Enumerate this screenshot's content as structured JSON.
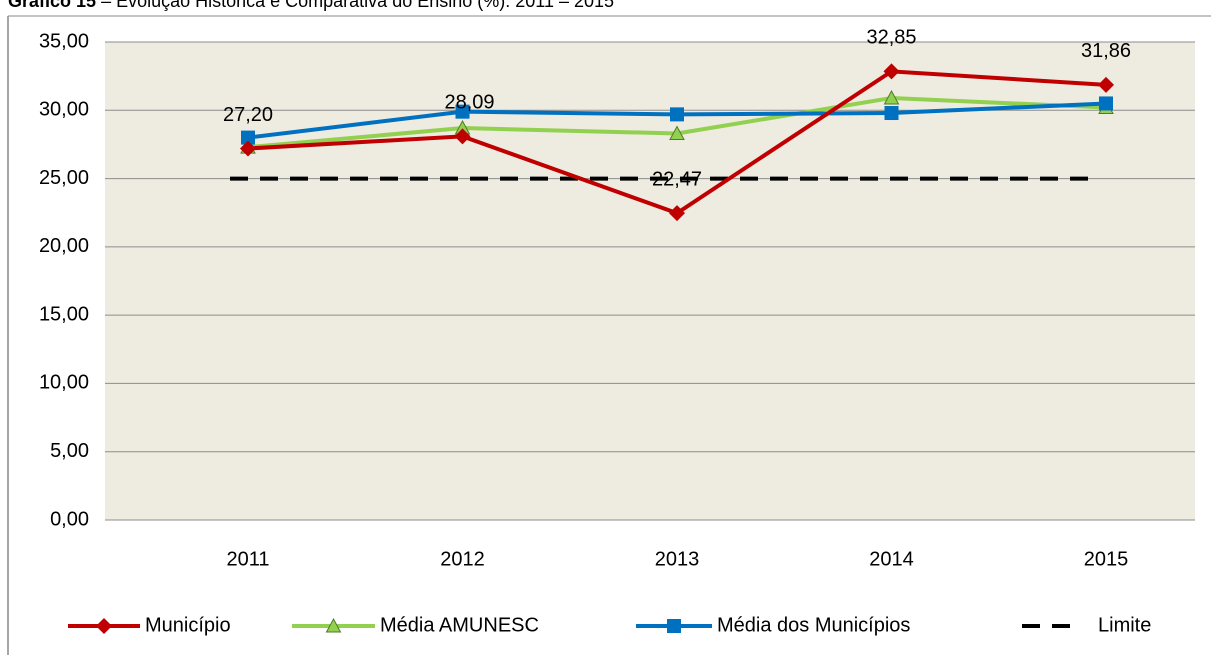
{
  "chart_data": {
    "type": "line",
    "title": {
      "label": "Gráfico 15",
      "text": "– Evolução Histórica e Comparativa do Ensino (%): 2011 – 2015"
    },
    "categories": [
      "2011",
      "2012",
      "2013",
      "2014",
      "2015"
    ],
    "series": [
      {
        "name": "Município",
        "color": "#c00000",
        "marker": "diamond",
        "values": [
          27.2,
          28.09,
          22.47,
          32.85,
          31.86
        ],
        "value_labels": [
          "27,20",
          "28,09",
          "22,47",
          "32,85",
          "31,86"
        ]
      },
      {
        "name": "Média AMUNESC",
        "color": "#92d050",
        "marker": "triangle",
        "values": [
          27.3,
          28.7,
          28.3,
          30.9,
          30.2
        ]
      },
      {
        "name": "Média dos Municípios",
        "color": "#0070c0",
        "marker": "square",
        "values": [
          28.0,
          29.9,
          29.7,
          29.8,
          30.5
        ]
      },
      {
        "name": "Limite",
        "color": "#000000",
        "marker": "dash",
        "values": [
          25,
          25,
          25,
          25,
          25
        ]
      }
    ],
    "ylim": [
      0,
      35
    ],
    "yticks": [
      {
        "value": 0,
        "label": "0,00"
      },
      {
        "value": 5,
        "label": "5,00"
      },
      {
        "value": 10,
        "label": "10,00"
      },
      {
        "value": 15,
        "label": "15,00"
      },
      {
        "value": 20,
        "label": "20,00"
      },
      {
        "value": 25,
        "label": "25,00"
      },
      {
        "value": 30,
        "label": "30,00"
      },
      {
        "value": 35,
        "label": "35,00"
      }
    ],
    "grid": true,
    "legend": "bottom"
  }
}
